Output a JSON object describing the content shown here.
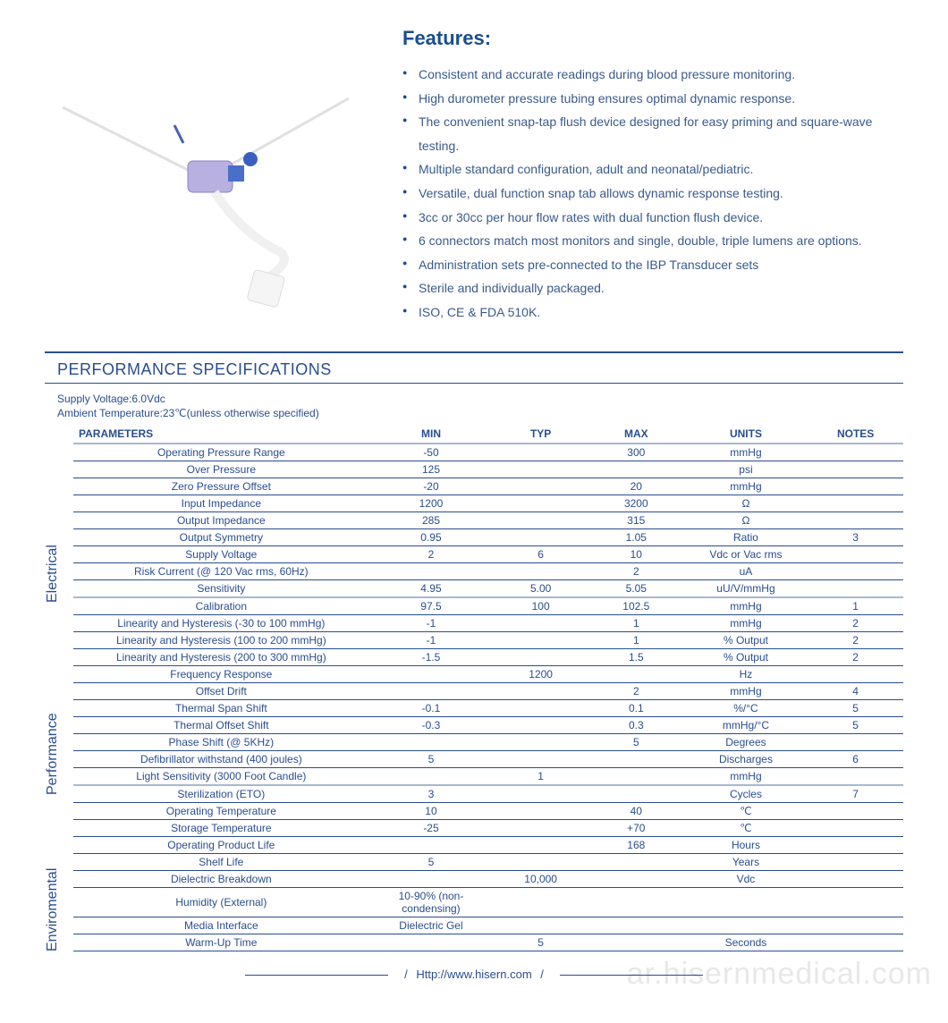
{
  "features": {
    "title": "Features:",
    "items": [
      "Consistent and accurate readings during blood pressure monitoring.",
      "High durometer pressure tubing ensures optimal dynamic response.",
      "The convenient snap-tap flush device designed for easy priming and square-wave testing.",
      "Multiple standard configuration, adult and neonatal/pediatric.",
      "Versatile, dual function snap tab allows dynamic response testing.",
      "3cc or 30cc per hour flow rates with dual function flush device.",
      "6 connectors match most monitors and single, double, triple lumens are options.",
      "Administration sets pre-connected to the IBP Transducer sets",
      "Sterile and individually packaged.",
      "ISO, CE & FDA 510K."
    ]
  },
  "spec": {
    "title": "PERFORMANCE SPECIFICATIONS",
    "meta1": "Supply Voltage:6.0Vdc",
    "meta2": "Ambient Temperature:23℃(unless otherwise specified)",
    "headers": [
      "PARAMETERS",
      "MIN",
      "TYP",
      "MAX",
      "UNITS",
      "NOTES"
    ],
    "groups": [
      {
        "label": "Electrical",
        "rows": [
          [
            "Operating Pressure Range",
            "-50",
            "",
            "300",
            "mmHg",
            ""
          ],
          [
            "Over  Pressure",
            "125",
            "",
            "",
            "psi",
            ""
          ],
          [
            "Zero Pressure Offset",
            "-20",
            "",
            "20",
            "mmHg",
            ""
          ],
          [
            "Input Impedance",
            "1200",
            "",
            "3200",
            "Ω",
            ""
          ],
          [
            "Output Impedance",
            "285",
            "",
            "315",
            "Ω",
            ""
          ],
          [
            "Output Symmetry",
            "0.95",
            "",
            "1.05",
            "Ratio",
            "3"
          ],
          [
            "Supply Voltage",
            "2",
            "6",
            "10",
            "Vdc or Vac rms",
            ""
          ],
          [
            "Risk Current (@ 120 Vac rms, 60Hz)",
            "",
            "",
            "2",
            "uA",
            ""
          ],
          [
            "Sensitivity",
            "4.95",
            "5.00",
            "5.05",
            "uU/V/mmHg",
            ""
          ]
        ]
      },
      {
        "label": "Performance",
        "rows": [
          [
            "Calibration",
            "97.5",
            "100",
            "102.5",
            "mmHg",
            "1"
          ],
          [
            "Linearity and Hysteresis (-30 to 100 mmHg)",
            "-1",
            "",
            "1",
            "mmHg",
            "2"
          ],
          [
            "Linearity and Hysteresis (100 to 200 mmHg)",
            "-1",
            "",
            "1",
            "% Output",
            "2"
          ],
          [
            "Linearity and Hysteresis (200 to 300 mmHg)",
            "-1.5",
            "",
            "1.5",
            "% Output",
            "2"
          ],
          [
            "Frequency Response",
            "",
            "1200",
            "",
            "Hz",
            ""
          ],
          [
            "Offset Drift",
            "",
            "",
            "2",
            "mmHg",
            "4"
          ],
          [
            "Thermal Span Shift",
            "-0.1",
            "",
            "0.1",
            "%/°C",
            "5"
          ],
          [
            "Thermal Offset Shift",
            "-0.3",
            "",
            "0.3",
            "mmHg/°C",
            "5"
          ],
          [
            "Phase Shift (@ 5KHz)",
            "",
            "",
            "5",
            "Degrees",
            ""
          ],
          [
            "Defibrillator withstand (400 joules)",
            "5",
            "",
            "",
            "Discharges",
            "6"
          ],
          [
            "Light Sensitivity (3000 Foot Candle)",
            "",
            "1",
            "",
            "mmHg",
            ""
          ]
        ]
      },
      {
        "label": "Enviromental",
        "rows": [
          [
            "Sterilization (ETO)",
            "3",
            "",
            "",
            "Cycles",
            "7"
          ],
          [
            "Operating Temperature",
            "10",
            "",
            "40",
            "℃",
            ""
          ],
          [
            "Storage Temperature",
            "-25",
            "",
            "+70",
            "℃",
            ""
          ],
          [
            "Operating Product Life",
            "",
            "",
            "168",
            "Hours",
            ""
          ],
          [
            "Shelf Life",
            "5",
            "",
            "",
            "Years",
            ""
          ],
          [
            "Dielectric Breakdown",
            "",
            "10,000",
            "",
            "Vdc",
            ""
          ],
          [
            "Humidity (External)",
            "10-90% (non-condensing)",
            "",
            "",
            "",
            ""
          ],
          [
            "Media Interface",
            "Dielectric Gel",
            "",
            "",
            "",
            ""
          ],
          [
            "Warm-Up Time",
            "",
            "5",
            "",
            "Seconds",
            ""
          ]
        ]
      }
    ]
  },
  "footer": {
    "url": "Http://www.hisern.com"
  },
  "watermark": "ar.hisernmedical.com",
  "colors": {
    "primary": "#2a4d8f",
    "heading": "#1a4d8f",
    "text_link": "#3a5a8a",
    "section_border": "#a8b8d0",
    "watermark": "#e8e8e8"
  }
}
